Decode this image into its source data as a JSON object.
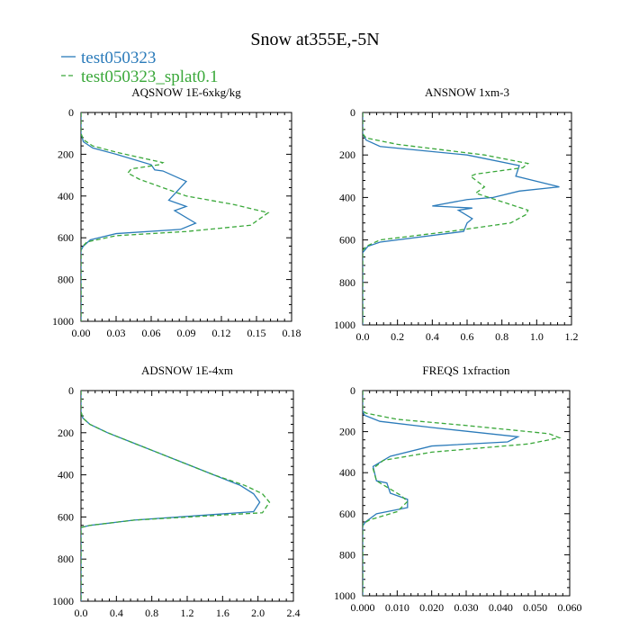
{
  "title": "Snow at355E,-5N",
  "colors": {
    "series1": "#2b7bba",
    "series2": "#3aa83a"
  },
  "legend": [
    {
      "name": "test050323",
      "color": "#2b7bba",
      "dash": "solid"
    },
    {
      "name": "test050323_splat0.1",
      "color": "#3aa83a",
      "dash": "dashed"
    }
  ],
  "chart_data": [
    {
      "type": "line",
      "title": "AQSNOW  1E-6xkg/kg",
      "xlim": [
        0,
        0.18
      ],
      "ylim": [
        0,
        1000
      ],
      "y_inverted": true,
      "xticks": [
        "0.00",
        "0.03",
        "0.06",
        "0.09",
        "0.12",
        "0.15",
        "0.18"
      ],
      "xtick_values": [
        0,
        0.03,
        0.06,
        0.09,
        0.12,
        0.15,
        0.18
      ],
      "yticks": [
        "0",
        "200",
        "400",
        "600",
        "800",
        "1000"
      ],
      "ytick_values": [
        0,
        200,
        400,
        600,
        800,
        1000
      ],
      "series": [
        {
          "name": "test050323",
          "x": [
            0,
            0,
            0.002,
            0.01,
            0.03,
            0.06,
            0.063,
            0.07,
            0.09,
            0.075,
            0.09,
            0.08,
            0.098,
            0.085,
            0.03,
            0.008,
            0.002,
            0,
            0
          ],
          "y": [
            0,
            100,
            140,
            170,
            200,
            250,
            275,
            280,
            330,
            420,
            450,
            470,
            530,
            560,
            580,
            610,
            640,
            660,
            1000
          ]
        },
        {
          "name": "test050323_splat0.1",
          "x": [
            0,
            0,
            0.002,
            0.01,
            0.03,
            0.07,
            0.067,
            0.043,
            0.04,
            0.05,
            0.09,
            0.13,
            0.16,
            0.155,
            0.145,
            0.09,
            0.03,
            0.005,
            0,
            0
          ],
          "y": [
            0,
            100,
            130,
            160,
            190,
            240,
            250,
            270,
            290,
            320,
            400,
            440,
            480,
            500,
            540,
            570,
            590,
            620,
            650,
            1000
          ]
        }
      ]
    },
    {
      "type": "line",
      "title": "ANSNOW  1xm-3",
      "xlim": [
        0,
        1.2
      ],
      "ylim": [
        0,
        1000
      ],
      "y_inverted": true,
      "xticks": [
        "0.0",
        "0.2",
        "0.4",
        "0.6",
        "0.8",
        "1.0",
        "1.2"
      ],
      "xtick_values": [
        0,
        0.2,
        0.4,
        0.6,
        0.8,
        1.0,
        1.2
      ],
      "yticks": [
        "0",
        "200",
        "400",
        "600",
        "800",
        "1000"
      ],
      "ytick_values": [
        0,
        200,
        400,
        600,
        800,
        1000
      ],
      "series": [
        {
          "name": "test050323",
          "x": [
            0,
            0,
            0.02,
            0.1,
            0.6,
            0.9,
            0.88,
            1.13,
            0.9,
            0.75,
            0.6,
            0.4,
            0.63,
            0.55,
            0.63,
            0.6,
            0.58,
            0.1,
            0.03,
            0,
            0
          ],
          "y": [
            0,
            100,
            130,
            160,
            200,
            250,
            300,
            350,
            370,
            400,
            410,
            440,
            450,
            460,
            500,
            520,
            560,
            610,
            630,
            660,
            1000
          ]
        },
        {
          "name": "test050323_splat0.1",
          "x": [
            0,
            0,
            0.02,
            0.2,
            0.7,
            0.95,
            0.92,
            0.65,
            0.62,
            0.7,
            0.65,
            0.8,
            0.95,
            0.94,
            0.85,
            0.5,
            0.1,
            0.02,
            0,
            0
          ],
          "y": [
            0,
            100,
            120,
            150,
            200,
            240,
            260,
            290,
            300,
            350,
            380,
            420,
            460,
            480,
            520,
            560,
            600,
            630,
            650,
            1000
          ]
        }
      ]
    },
    {
      "type": "line",
      "title": "ADSNOW  1E-4xm",
      "xlim": [
        0,
        2.4
      ],
      "ylim": [
        0,
        1000
      ],
      "y_inverted": true,
      "xticks": [
        "0.0",
        "0.4",
        "0.8",
        "1.2",
        "1.6",
        "2.0",
        "2.4"
      ],
      "xtick_values": [
        0,
        0.4,
        0.8,
        1.2,
        1.6,
        2.0,
        2.4
      ],
      "yticks": [
        "0",
        "200",
        "400",
        "600",
        "800",
        "1000"
      ],
      "ytick_values": [
        0,
        200,
        400,
        600,
        800,
        1000
      ],
      "series": [
        {
          "name": "test050323",
          "x": [
            0,
            0,
            0.02,
            0.1,
            0.3,
            0.6,
            0.9,
            1.2,
            1.5,
            1.8,
            1.95,
            2.02,
            1.95,
            0.6,
            0.1,
            0,
            0
          ],
          "y": [
            0,
            100,
            130,
            160,
            200,
            250,
            300,
            350,
            400,
            450,
            490,
            530,
            575,
            615,
            640,
            650,
            1000
          ]
        },
        {
          "name": "test050323_splat0.1",
          "x": [
            0,
            0,
            0.02,
            0.1,
            0.3,
            0.6,
            0.9,
            1.2,
            1.5,
            1.85,
            2.05,
            2.13,
            2.05,
            0.6,
            0.1,
            0,
            0
          ],
          "y": [
            0,
            100,
            130,
            160,
            200,
            250,
            300,
            350,
            400,
            450,
            490,
            530,
            580,
            615,
            640,
            650,
            1000
          ]
        }
      ]
    },
    {
      "type": "line",
      "title": "FREQS  1xfraction",
      "xlim": [
        0,
        0.06
      ],
      "ylim": [
        0,
        1000
      ],
      "y_inverted": true,
      "xticks": [
        "0.000",
        "0.010",
        "0.020",
        "0.030",
        "0.040",
        "0.050",
        "0.060"
      ],
      "xtick_values": [
        0,
        0.01,
        0.02,
        0.03,
        0.04,
        0.05,
        0.06
      ],
      "yticks": [
        "0",
        "200",
        "400",
        "600",
        "800",
        "1000"
      ],
      "ytick_values": [
        0,
        200,
        400,
        600,
        800,
        1000
      ],
      "series": [
        {
          "name": "test050323",
          "x": [
            0,
            0,
            0.0005,
            0.005,
            0.02,
            0.045,
            0.042,
            0.02,
            0.008,
            0.003,
            0.004,
            0.007,
            0.008,
            0.013,
            0.013,
            0.004,
            0.0008,
            0,
            0
          ],
          "y": [
            0,
            100,
            120,
            150,
            180,
            225,
            250,
            270,
            320,
            370,
            440,
            450,
            500,
            530,
            570,
            600,
            640,
            660,
            1000
          ]
        },
        {
          "name": "test050323_splat0.1",
          "x": [
            0,
            0,
            0.001,
            0.01,
            0.03,
            0.054,
            0.057,
            0.048,
            0.02,
            0.006,
            0.003,
            0.004,
            0.008,
            0.011,
            0.013,
            0.01,
            0.002,
            0,
            0
          ],
          "y": [
            0,
            100,
            110,
            140,
            170,
            210,
            230,
            260,
            300,
            340,
            380,
            440,
            480,
            510,
            540,
            590,
            630,
            650,
            1000
          ]
        }
      ]
    }
  ]
}
